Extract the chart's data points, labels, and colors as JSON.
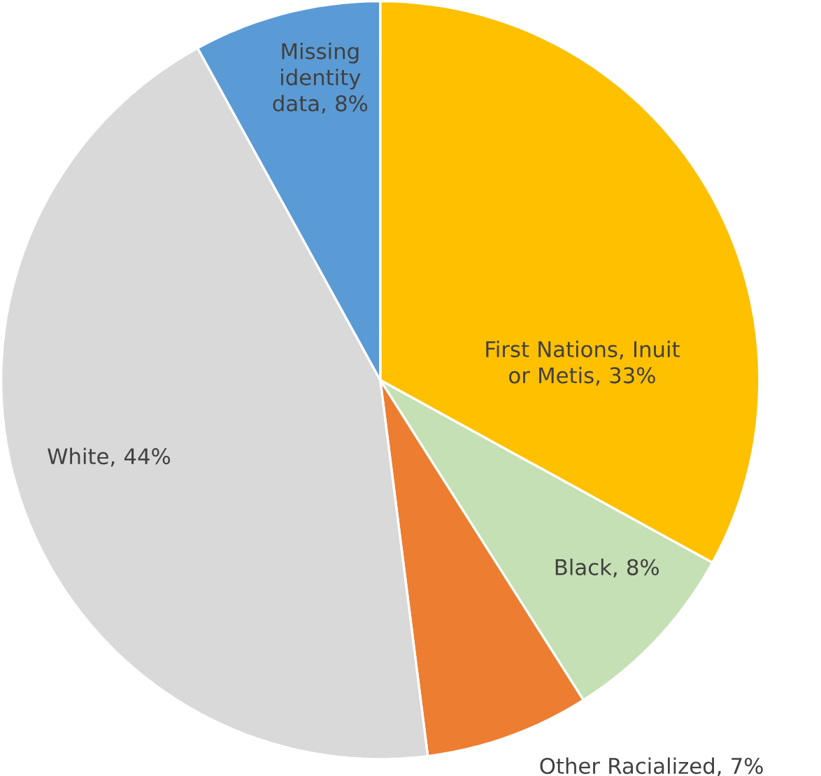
{
  "chart_data": {
    "type": "pie",
    "categories": [
      "First Nations, Inuit or Metis, 33%",
      "Black, 8%",
      "Other Racialized, 7%",
      "White, 44%",
      "Missing identity data, 8%"
    ],
    "values": [
      33,
      8,
      7,
      44,
      8
    ],
    "colors": [
      "#ffc000",
      "#c5e0b4",
      "#ed7d31",
      "#d9d9d9",
      "#5b9bd5"
    ]
  }
}
